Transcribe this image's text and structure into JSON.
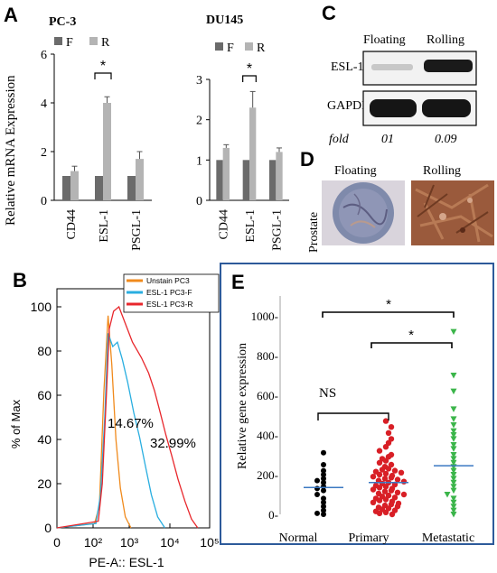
{
  "panels": {
    "a": {
      "letter": "A",
      "ylabel": "Relative mRNA Expression",
      "legend": [
        "F",
        "R"
      ],
      "colors": {
        "F": "#6b6b6b",
        "R": "#b4b4b4"
      }
    },
    "b": {
      "letter": "B",
      "legend": [
        "Unstain PC3",
        "ESL-1 PC3-F",
        "ESL-1 PC3-R"
      ],
      "pct1": "14.67%",
      "pct2": "32.99%"
    },
    "c": {
      "letter": "C",
      "col_labels": [
        "Floating",
        "Rolling"
      ],
      "row_labels": [
        "ESL-1",
        "GAPDH"
      ],
      "fold_label": "fold",
      "fold_values": [
        "01",
        "0.09"
      ]
    },
    "d": {
      "letter": "D",
      "col_labels": [
        "Floating",
        "Rolling"
      ],
      "row_label": "Prostate"
    },
    "e": {
      "letter": "E",
      "star": "*",
      "ns": "NS"
    }
  },
  "chart_data": [
    {
      "type": "bar",
      "title": "PC-3",
      "categories": [
        "CD44",
        "ESL-1",
        "PSGL-1"
      ],
      "series": [
        {
          "name": "F",
          "values": [
            1.0,
            1.0,
            1.0
          ]
        },
        {
          "name": "R",
          "values": [
            1.2,
            4.0,
            1.7
          ]
        }
      ],
      "errors_R": [
        0.2,
        0.25,
        0.3
      ],
      "ylabel": "Relative mRNA Expression",
      "ylim": [
        0,
        6
      ],
      "yticks": [
        "0",
        "2",
        "4",
        "6"
      ],
      "annotation": "*"
    },
    {
      "type": "bar",
      "title": "DU145",
      "categories": [
        "CD44",
        "ESL-1",
        "PSGL-1"
      ],
      "series": [
        {
          "name": "F",
          "values": [
            1.0,
            1.0,
            1.0
          ]
        },
        {
          "name": "R",
          "values": [
            1.3,
            2.3,
            1.2
          ]
        }
      ],
      "errors_R": [
        0.08,
        0.4,
        0.1
      ],
      "ylim": [
        0,
        3
      ],
      "yticks": [
        "0",
        "1",
        "2",
        "3"
      ],
      "annotation": "*"
    },
    {
      "type": "line",
      "xlabel": "PE-A:: ESL-1",
      "ylabel": "% of Max",
      "xscale": "log",
      "xlim": [
        0,
        100000
      ],
      "ylim": [
        0,
        100
      ],
      "xticks": [
        "0",
        "10²",
        "10³",
        "10⁴",
        "10⁵"
      ],
      "yticks": [
        "0",
        "20",
        "40",
        "60",
        "80",
        "100"
      ],
      "series": [
        {
          "name": "Unstain PC3",
          "color": "#f08a1c",
          "points": [
            [
              0,
              0
            ],
            [
              110,
              2
            ],
            [
              150,
              10
            ],
            [
              200,
              62
            ],
            [
              260,
              96
            ],
            [
              330,
              74
            ],
            [
              430,
              40
            ],
            [
              570,
              18
            ],
            [
              780,
              5
            ],
            [
              1100,
              0
            ]
          ]
        },
        {
          "name": "ESL-1 PC3-F",
          "color": "#29aee0",
          "points": [
            [
              0,
              0
            ],
            [
              120,
              2
            ],
            [
              160,
              15
            ],
            [
              210,
              50
            ],
            [
              260,
              88
            ],
            [
              350,
              82
            ],
            [
              470,
              84
            ],
            [
              650,
              76
            ],
            [
              900,
              66
            ],
            [
              1300,
              52
            ],
            [
              1800,
              41
            ],
            [
              2500,
              28
            ],
            [
              3500,
              15
            ],
            [
              5000,
              5
            ],
            [
              7500,
              0
            ]
          ]
        },
        {
          "name": "ESL-1 PC3-R",
          "color": "#e8272c",
          "points": [
            [
              0,
              0
            ],
            [
              140,
              3
            ],
            [
              180,
              20
            ],
            [
              230,
              58
            ],
            [
              280,
              90
            ],
            [
              370,
              98
            ],
            [
              520,
              100
            ],
            [
              800,
              92
            ],
            [
              1200,
              84
            ],
            [
              2000,
              77
            ],
            [
              3000,
              70
            ],
            [
              4200,
              62
            ],
            [
              5800,
              52
            ],
            [
              8000,
              42
            ],
            [
              11000,
              33
            ],
            [
              16000,
              22
            ],
            [
              24000,
              12
            ],
            [
              35000,
              4
            ],
            [
              50000,
              0
            ]
          ]
        }
      ]
    },
    {
      "type": "scatter",
      "ylabel": "Relative gene expression",
      "categories": [
        "Normal",
        "Primary",
        "Metastatic"
      ],
      "ylim": [
        0,
        1100
      ],
      "yticks": [
        "0-",
        "200-",
        "400-",
        "600-",
        "800-",
        "1000-"
      ],
      "series": [
        {
          "name": "Normal",
          "color": "#000000",
          "mean": 135,
          "values": [
            310,
            250,
            220,
            200,
            180,
            160,
            140,
            120,
            100,
            80,
            60,
            40,
            20,
            0,
            5,
            130,
            170
          ]
        },
        {
          "name": "Primary",
          "color": "#d81f26",
          "mean": 160,
          "values": [
            470,
            440,
            410,
            380,
            360,
            340,
            320,
            300,
            290,
            280,
            270,
            260,
            250,
            240,
            230,
            225,
            220,
            215,
            210,
            205,
            200,
            195,
            190,
            185,
            180,
            175,
            170,
            165,
            160,
            155,
            150,
            145,
            140,
            135,
            130,
            125,
            120,
            115,
            110,
            105,
            100,
            95,
            90,
            85,
            80,
            75,
            70,
            65,
            60,
            55,
            50,
            45,
            40,
            35,
            30,
            25,
            20,
            15,
            10,
            5,
            0
          ]
        },
        {
          "name": "Metastatic",
          "color": "#3bb54a",
          "mean": 245,
          "values": [
            920,
            700,
            620,
            530,
            480,
            450,
            420,
            400,
            380,
            350,
            330,
            300,
            280,
            260,
            240,
            220,
            200,
            180,
            160,
            140,
            120,
            100,
            80,
            60,
            40,
            20,
            0
          ]
        }
      ],
      "annotations": [
        "*",
        "*",
        "NS"
      ]
    }
  ]
}
